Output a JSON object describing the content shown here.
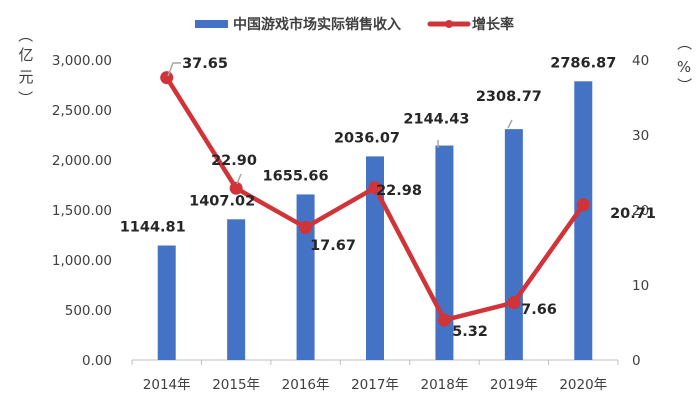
{
  "chart_data": {
    "type": "bar+line",
    "title": "",
    "categories": [
      "2014年",
      "2015年",
      "2016年",
      "2017年",
      "2018年",
      "2019年",
      "2020年"
    ],
    "series": [
      {
        "name": "中国游戏市场实际销售收入",
        "type": "bar",
        "axis": "left",
        "color": "#4472C4",
        "values": [
          1144.81,
          1407.02,
          1655.66,
          2036.07,
          2144.43,
          2308.77,
          2786.87
        ],
        "labels": [
          "1144.81",
          "1407.02",
          "1655.66",
          "2036.07",
          "2144.43",
          "2308.77",
          "2786.87"
        ]
      },
      {
        "name": "增长率",
        "type": "line",
        "axis": "right",
        "color": "#D13438",
        "values": [
          37.65,
          22.9,
          17.67,
          22.98,
          5.32,
          7.66,
          20.71
        ],
        "labels": [
          "37.65",
          "22.90",
          "17.67",
          "22.98",
          "5.32",
          "7.66",
          "20.71"
        ]
      }
    ],
    "ylabel_left": "（亿元）",
    "ylabel_right": "（%）",
    "ylim_left": [
      0,
      3000
    ],
    "yticks_left": [
      "0.00",
      "500.00",
      "1,000.00",
      "1,500.00",
      "2,000.00",
      "2,500.00",
      "3,000.00"
    ],
    "ylim_right": [
      0,
      40
    ],
    "yticks_right": [
      "0",
      "10",
      "20",
      "30",
      "40"
    ],
    "grid": false,
    "legend_position": "top"
  },
  "legend": {
    "bar_label": "中国游戏市场实际销售收入",
    "line_label": "增长率"
  },
  "axis_labels": {
    "left_chars": [
      "（",
      "亿",
      "元",
      "）"
    ],
    "right_chars": [
      "（",
      "%",
      "）"
    ]
  }
}
